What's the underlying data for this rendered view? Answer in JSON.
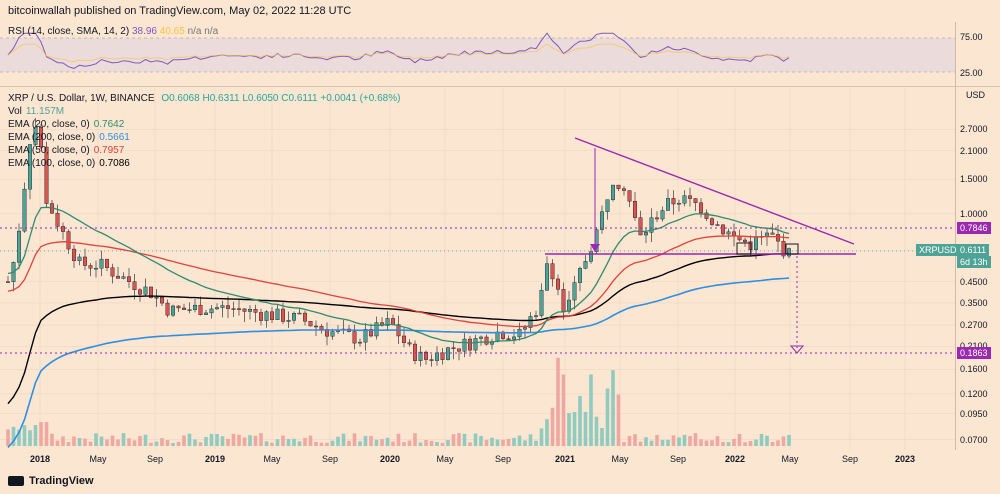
{
  "header": {
    "published": "bitcoinwallah published on TradingView.com, May 02, 2022 11:28 UTC"
  },
  "rsi": {
    "label": "RSI (14, close, SMA, 14, 2)",
    "value": "38.96",
    "sma_value": "40.65",
    "na1": "n/a",
    "na2": "n/a",
    "levels": [
      "75.00",
      "25.00"
    ]
  },
  "legend": {
    "symbol": "XRP / U.S. Dollar, 1W, BINANCE",
    "open": "O0.6068",
    "high": "H0.6311",
    "low": "L0.6050",
    "close": "C0.6111",
    "change": "+0.0041 (+0.68%)",
    "vol_label": "Vol",
    "vol_value": "11.157M",
    "ema20_label": "EMA (20, close, 0)",
    "ema20_value": "0.7642",
    "ema200_label": "EMA (200, close, 0)",
    "ema200_value": "0.5661",
    "ema50_label": "EMA (50, close, 0)",
    "ema50_value": "0.7957",
    "ema100_label": "EMA (100, close, 0)",
    "ema100_value": "0.7086"
  },
  "price_axis": {
    "currency": "USD",
    "ticks": [
      "2.7000",
      "2.1000",
      "1.5000",
      "1.0000",
      "0.6500",
      "0.4500",
      "0.3500",
      "0.2700",
      "0.2100",
      "0.1600",
      "0.1200",
      "0.0950",
      "0.0700"
    ],
    "tag_resistance": "0.7846",
    "tag_price": "0.6111",
    "tag_time": "6d 13h",
    "tag_target": "0.1863",
    "symbol_tag": "XRPUSD"
  },
  "time_axis": {
    "labels": [
      "2018",
      "May",
      "Sep",
      "2019",
      "May",
      "Sep",
      "2020",
      "May",
      "Sep",
      "2021",
      "May",
      "Sep",
      "2022",
      "May",
      "Sep",
      "2023"
    ]
  },
  "footer": {
    "brand": "TradingView"
  },
  "colors": {
    "background": "#fbe6d2",
    "up": "#4fa396",
    "down": "#d9534f",
    "ema20": "#2e8b6e",
    "ema50": "#e0413b",
    "ema100": "#000000",
    "ema200": "#2f8fe0",
    "rsi": "#7e57c2",
    "triangle": "#9c27b0"
  },
  "chart_data": {
    "type": "candlestick",
    "title": "XRP / U.S. Dollar, 1W, BINANCE",
    "ylabel": "USD",
    "scale": "log",
    "ylim": [
      0.065,
      4.0
    ],
    "x": [
      "2018",
      "May",
      "Sep",
      "2019",
      "May",
      "Sep",
      "2020",
      "May",
      "Sep",
      "2021",
      "May",
      "Sep",
      "2022",
      "May",
      "Sep",
      "2023"
    ],
    "series": [
      {
        "name": "EMA (20, close, 0)",
        "last": 0.7642
      },
      {
        "name": "EMA (50, close, 0)",
        "last": 0.7957
      },
      {
        "name": "EMA (100, close, 0)",
        "last": 0.7086
      },
      {
        "name": "EMA (200, close, 0)",
        "last": 0.5661
      }
    ],
    "last_candle": {
      "open": 0.6068,
      "high": 0.6311,
      "low": 0.605,
      "close": 0.6111
    },
    "levels": {
      "resistance": 0.7846,
      "target": 0.1863
    },
    "grid": true,
    "legend_position": "top-left"
  }
}
